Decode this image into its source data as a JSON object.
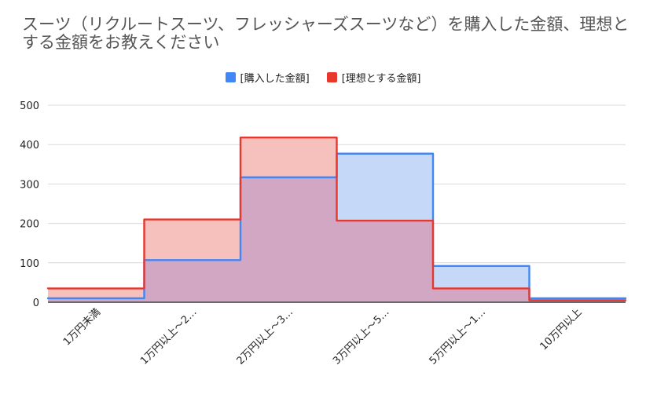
{
  "chart_data": {
    "type": "area",
    "title": "スーツ（リクルートスーツ、フレッシャーズスーツなど）を購入した金額、理想とする金額をお教えください",
    "categories": [
      "1万円未満",
      "1万円以上～2…",
      "2万円以上～3…",
      "3万円以上～5…",
      "5万円以上～1…",
      "10万円以上"
    ],
    "series": [
      {
        "name": "[購入した金額]",
        "values": [
          10,
          107,
          317,
          377,
          92,
          10
        ],
        "color": "#4285f4",
        "fill": "#c6d8f7"
      },
      {
        "name": "[理想とする金額]",
        "values": [
          35,
          210,
          418,
          207,
          35,
          5
        ],
        "color": "#e8372c",
        "fill": "#f6c0bd"
      }
    ],
    "overlap_fill": "#d1a7c4",
    "ylim": [
      0,
      500
    ],
    "yticks": [
      0,
      100,
      200,
      300,
      400,
      500
    ],
    "grid": true,
    "legend_position": "top",
    "style": "stepped"
  }
}
